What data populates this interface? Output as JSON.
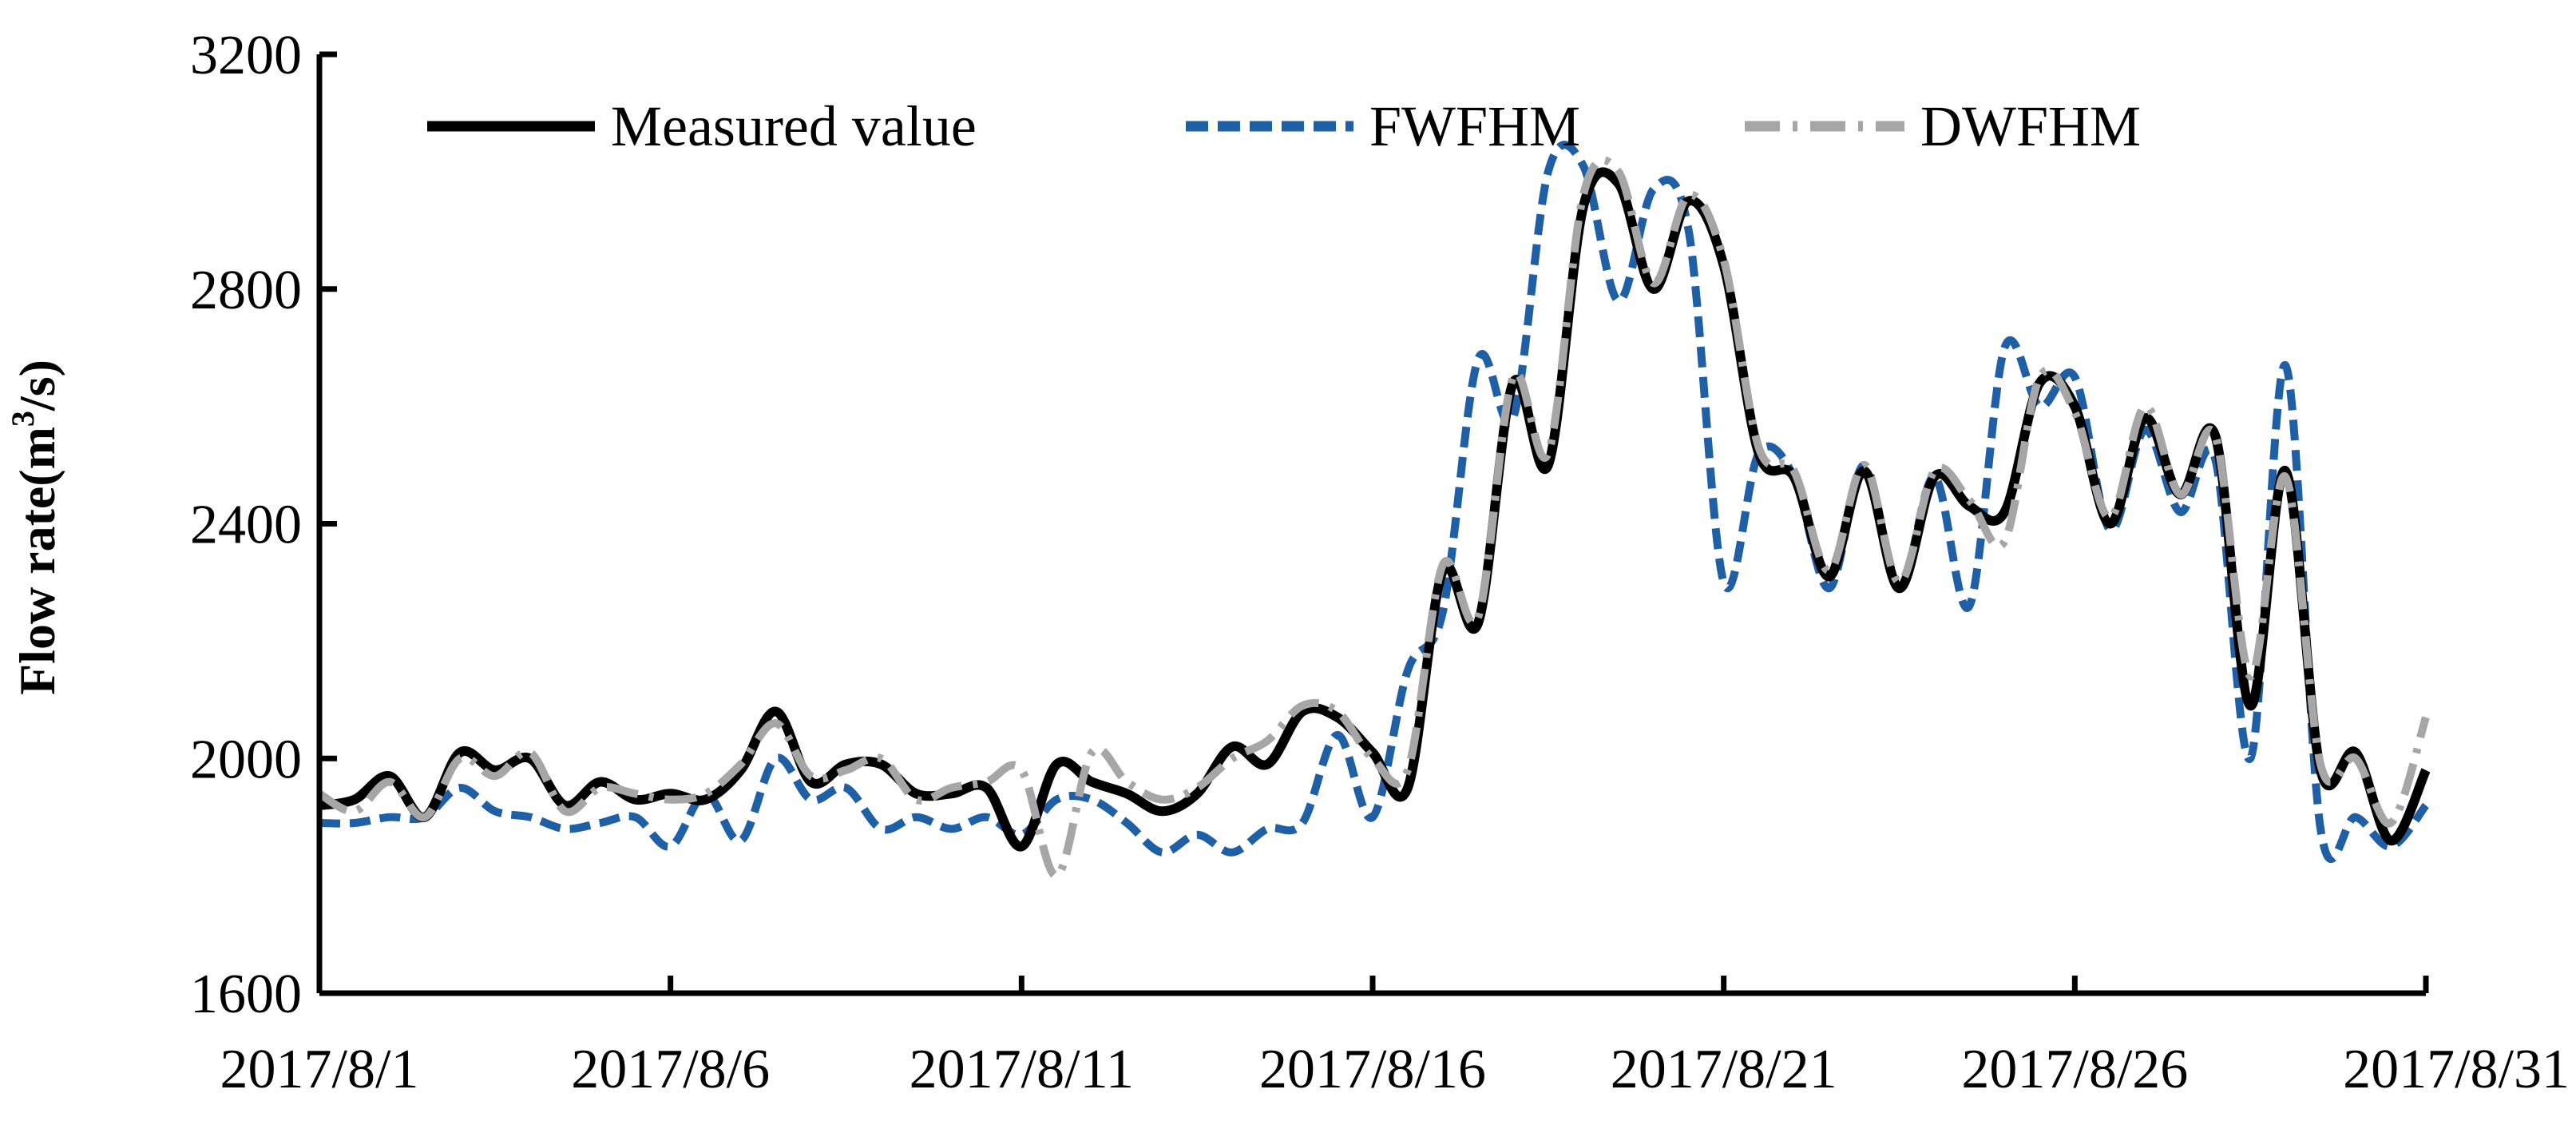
{
  "chart_data": {
    "type": "line",
    "title": "",
    "xlabel": "",
    "ylabel": "Flow rate(m³/s)",
    "ylabel_base": "Flow rate(m",
    "ylabel_sup": "3",
    "ylabel_tail": "/s)",
    "ylim": [
      1600,
      3200
    ],
    "yticks": [
      1600,
      2000,
      2400,
      2800,
      3200
    ],
    "xlim": [
      "2017-08-01",
      "2017-08-31"
    ],
    "xtick_labels": [
      "2017/8/1",
      "2017/8/6",
      "2017/8/11",
      "2017/8/16",
      "2017/8/21",
      "2017/8/26",
      "2017/8/31"
    ],
    "xtick_dates": [
      "2017-08-01",
      "2017-08-06",
      "2017-08-11",
      "2017-08-16",
      "2017-08-21",
      "2017-08-26",
      "2017-08-31"
    ],
    "grid": false,
    "legend_position": "top",
    "series": [
      {
        "name": "Measured value",
        "color": "#000000",
        "style": "solid",
        "x": [
          "2017-08-01T00:00",
          "2017-08-01T12:00",
          "2017-08-02T00:00",
          "2017-08-02T12:00",
          "2017-08-03T00:00",
          "2017-08-03T12:00",
          "2017-08-04T00:00",
          "2017-08-04T12:00",
          "2017-08-05T00:00",
          "2017-08-05T12:00",
          "2017-08-06T00:00",
          "2017-08-06T12:00",
          "2017-08-07T00:00",
          "2017-08-07T12:00",
          "2017-08-08T00:00",
          "2017-08-08T12:00",
          "2017-08-09T00:00",
          "2017-08-09T12:00",
          "2017-08-10T00:00",
          "2017-08-10T12:00",
          "2017-08-11T00:00",
          "2017-08-11T12:00",
          "2017-08-12T00:00",
          "2017-08-12T12:00",
          "2017-08-13T00:00",
          "2017-08-13T12:00",
          "2017-08-14T00:00",
          "2017-08-14T12:00",
          "2017-08-15T00:00",
          "2017-08-15T12:00",
          "2017-08-16T00:00",
          "2017-08-16T12:00",
          "2017-08-17T00:00",
          "2017-08-17T12:00",
          "2017-08-18T00:00",
          "2017-08-18T12:00",
          "2017-08-19T00:00",
          "2017-08-19T12:00",
          "2017-08-20T00:00",
          "2017-08-20T12:00",
          "2017-08-21T00:00",
          "2017-08-21T12:00",
          "2017-08-22T00:00",
          "2017-08-22T12:00",
          "2017-08-23T00:00",
          "2017-08-23T12:00",
          "2017-08-24T00:00",
          "2017-08-24T12:00",
          "2017-08-25T00:00",
          "2017-08-25T12:00",
          "2017-08-26T00:00",
          "2017-08-26T12:00",
          "2017-08-27T00:00",
          "2017-08-27T12:00",
          "2017-08-28T00:00",
          "2017-08-28T12:00",
          "2017-08-29T00:00",
          "2017-08-29T12:00",
          "2017-08-30T00:00",
          "2017-08-30T12:00",
          "2017-08-31T00:00"
        ],
        "y": [
          1920,
          1930,
          1970,
          1900,
          2010,
          1980,
          2000,
          1920,
          1960,
          1930,
          1940,
          1930,
          1980,
          2080,
          1960,
          1990,
          1990,
          1940,
          1940,
          1950,
          1850,
          1990,
          1960,
          1940,
          1910,
          1940,
          2020,
          1990,
          2080,
          2070,
          2010,
          1950,
          2320,
          2230,
          2640,
          2500,
          2940,
          2980,
          2800,
          2950,
          2840,
          2520,
          2480,
          2310,
          2490,
          2290,
          2480,
          2430,
          2420,
          2640,
          2600,
          2400,
          2580,
          2450,
          2550,
          2090,
          2490,
          1980,
          2010,
          1860,
          1980
        ]
      },
      {
        "name": "FWFHM",
        "color": "#1f5fa6",
        "style": "dashed",
        "x": [
          "2017-08-01T00:00",
          "2017-08-01T12:00",
          "2017-08-02T00:00",
          "2017-08-02T12:00",
          "2017-08-03T00:00",
          "2017-08-03T12:00",
          "2017-08-04T00:00",
          "2017-08-04T12:00",
          "2017-08-05T00:00",
          "2017-08-05T12:00",
          "2017-08-06T00:00",
          "2017-08-06T12:00",
          "2017-08-07T00:00",
          "2017-08-07T12:00",
          "2017-08-08T00:00",
          "2017-08-08T12:00",
          "2017-08-09T00:00",
          "2017-08-09T12:00",
          "2017-08-10T00:00",
          "2017-08-10T12:00",
          "2017-08-11T00:00",
          "2017-08-11T12:00",
          "2017-08-12T00:00",
          "2017-08-12T12:00",
          "2017-08-13T00:00",
          "2017-08-13T12:00",
          "2017-08-14T00:00",
          "2017-08-14T12:00",
          "2017-08-15T00:00",
          "2017-08-15T12:00",
          "2017-08-16T00:00",
          "2017-08-16T12:00",
          "2017-08-17T00:00",
          "2017-08-17T12:00",
          "2017-08-18T00:00",
          "2017-08-18T12:00",
          "2017-08-19T00:00",
          "2017-08-19T12:00",
          "2017-08-20T00:00",
          "2017-08-20T12:00",
          "2017-08-21T00:00",
          "2017-08-21T12:00",
          "2017-08-22T00:00",
          "2017-08-22T12:00",
          "2017-08-23T00:00",
          "2017-08-23T12:00",
          "2017-08-24T00:00",
          "2017-08-24T12:00",
          "2017-08-25T00:00",
          "2017-08-25T12:00",
          "2017-08-26T00:00",
          "2017-08-26T12:00",
          "2017-08-27T00:00",
          "2017-08-27T12:00",
          "2017-08-28T00:00",
          "2017-08-28T12:00",
          "2017-08-29T00:00",
          "2017-08-29T12:00",
          "2017-08-30T00:00",
          "2017-08-30T12:00",
          "2017-08-31T00:00"
        ],
        "y": [
          1890,
          1890,
          1900,
          1900,
          1950,
          1910,
          1900,
          1880,
          1890,
          1900,
          1850,
          1940,
          1860,
          2000,
          1930,
          1950,
          1880,
          1900,
          1880,
          1900,
          1870,
          1930,
          1930,
          1890,
          1840,
          1870,
          1840,
          1880,
          1890,
          2040,
          1900,
          2150,
          2250,
          2680,
          2580,
          3000,
          3010,
          2780,
          2970,
          2900,
          2300,
          2520,
          2480,
          2290,
          2500,
          2290,
          2480,
          2260,
          2700,
          2600,
          2650,
          2390,
          2560,
          2420,
          2510,
          2000,
          2670,
          1880,
          1900,
          1850,
          1920
        ]
      },
      {
        "name": "DWFHM",
        "color": "#a6a6a6",
        "style": "dash-dot",
        "x": [
          "2017-08-01T00:00",
          "2017-08-01T12:00",
          "2017-08-02T00:00",
          "2017-08-02T12:00",
          "2017-08-03T00:00",
          "2017-08-03T12:00",
          "2017-08-04T00:00",
          "2017-08-04T12:00",
          "2017-08-05T00:00",
          "2017-08-05T12:00",
          "2017-08-06T00:00",
          "2017-08-06T12:00",
          "2017-08-07T00:00",
          "2017-08-07T12:00",
          "2017-08-08T00:00",
          "2017-08-08T12:00",
          "2017-08-09T00:00",
          "2017-08-09T12:00",
          "2017-08-10T00:00",
          "2017-08-10T12:00",
          "2017-08-11T00:00",
          "2017-08-11T12:00",
          "2017-08-12T00:00",
          "2017-08-12T12:00",
          "2017-08-13T00:00",
          "2017-08-13T12:00",
          "2017-08-14T00:00",
          "2017-08-14T12:00",
          "2017-08-15T00:00",
          "2017-08-15T12:00",
          "2017-08-16T00:00",
          "2017-08-16T12:00",
          "2017-08-17T00:00",
          "2017-08-17T12:00",
          "2017-08-18T00:00",
          "2017-08-18T12:00",
          "2017-08-19T00:00",
          "2017-08-19T12:00",
          "2017-08-20T00:00",
          "2017-08-20T12:00",
          "2017-08-21T00:00",
          "2017-08-21T12:00",
          "2017-08-22T00:00",
          "2017-08-22T12:00",
          "2017-08-23T00:00",
          "2017-08-23T12:00",
          "2017-08-24T00:00",
          "2017-08-24T12:00",
          "2017-08-25T00:00",
          "2017-08-25T12:00",
          "2017-08-26T00:00",
          "2017-08-26T12:00",
          "2017-08-27T00:00",
          "2017-08-27T12:00",
          "2017-08-28T00:00",
          "2017-08-28T12:00",
          "2017-08-29T00:00",
          "2017-08-29T12:00",
          "2017-08-30T00:00",
          "2017-08-30T12:00",
          "2017-08-31T00:00"
        ],
        "y": [
          1940,
          1910,
          1960,
          1900,
          2000,
          1970,
          2010,
          1910,
          1950,
          1940,
          1930,
          1940,
          1990,
          2060,
          1970,
          1980,
          2000,
          1930,
          1950,
          1960,
          1980,
          1800,
          2010,
          1960,
          1930,
          1950,
          2000,
          2030,
          2090,
          2080,
          2000,
          1980,
          2330,
          2240,
          2650,
          2520,
          2960,
          3000,
          2810,
          2960,
          2850,
          2530,
          2490,
          2320,
          2500,
          2300,
          2490,
          2440,
          2370,
          2650,
          2590,
          2410,
          2600,
          2450,
          2550,
          2140,
          2480,
          1990,
          2000,
          1890,
          2070
        ]
      }
    ]
  }
}
